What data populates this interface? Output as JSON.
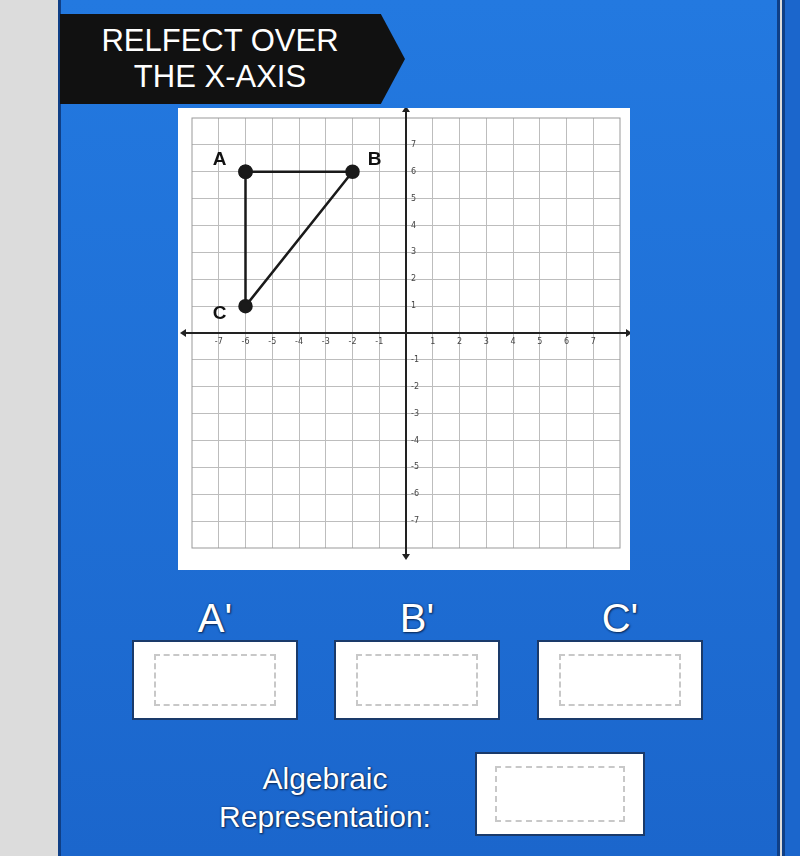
{
  "header": {
    "title_lines": [
      "RELFECT OVER",
      "THE X-AXIS"
    ]
  },
  "chart_data": {
    "type": "scatter",
    "x": [
      -6,
      -2,
      -6
    ],
    "values": [
      6,
      6,
      1
    ],
    "point_labels": [
      "A",
      "B",
      "C"
    ],
    "xlim": [
      -8,
      8
    ],
    "ylim": [
      -8,
      8
    ],
    "xticks": [
      -7,
      -6,
      -5,
      -4,
      -3,
      -2,
      -1,
      1,
      2,
      3,
      4,
      5,
      6,
      7
    ],
    "yticks": [
      -7,
      -6,
      -5,
      -4,
      -3,
      -2,
      -1,
      1,
      2,
      3,
      4,
      5,
      6,
      7
    ],
    "grid": true,
    "marker": "circle",
    "line_style": "solid",
    "color": "#1a1a1a"
  },
  "answer_boxes": {
    "labels": [
      "A'",
      "B'",
      "C'"
    ]
  },
  "algebraic": {
    "label_lines": [
      "Algebraic",
      "Representation:"
    ]
  }
}
